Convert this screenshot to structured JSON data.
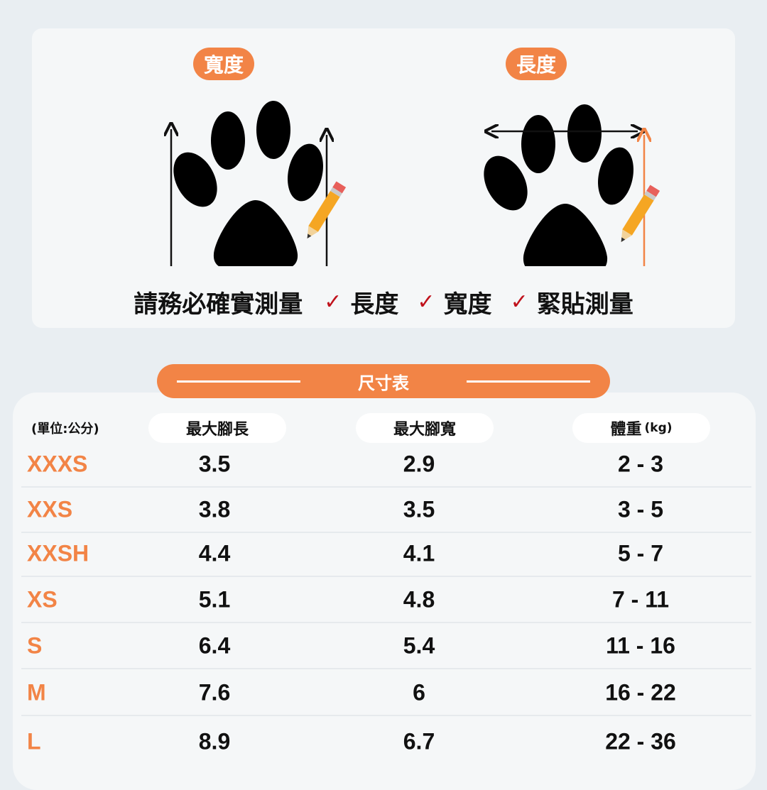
{
  "top": {
    "width_label": "寬度",
    "length_label": "長度",
    "instruction_prefix": "請務必確實測量",
    "checks": [
      "長度",
      "寬度",
      "緊貼測量"
    ],
    "accent_color": "#f28446",
    "check_color": "#c0121c"
  },
  "chart": {
    "title": "尺寸表",
    "unit_note": "(單位:公分)",
    "headers": {
      "length": "最大腳長",
      "width": "最大腳寬",
      "weight": "體重",
      "weight_unit": "(kg)"
    },
    "rows": [
      {
        "size": "XXXS",
        "length": "3.5",
        "width": "2.9",
        "weight": "2 - 3"
      },
      {
        "size": "XXS",
        "length": "3.8",
        "width": "3.5",
        "weight": "3 - 5"
      },
      {
        "size": "XXSH",
        "length": "4.4",
        "width": "4.1",
        "weight": "5 - 7"
      },
      {
        "size": "XS",
        "length": "5.1",
        "width": "4.8",
        "weight": "7 - 11"
      },
      {
        "size": "S",
        "length": "6.4",
        "width": "5.4",
        "weight": "11 - 16"
      },
      {
        "size": "M",
        "length": "7.6",
        "width": "6",
        "weight": "16 - 22"
      },
      {
        "size": "L",
        "length": "8.9",
        "width": "6.7",
        "weight": "22 - 36"
      }
    ]
  },
  "icons": [
    "paw-icon",
    "pencil-icon",
    "arrow-icon",
    "check-icon"
  ]
}
